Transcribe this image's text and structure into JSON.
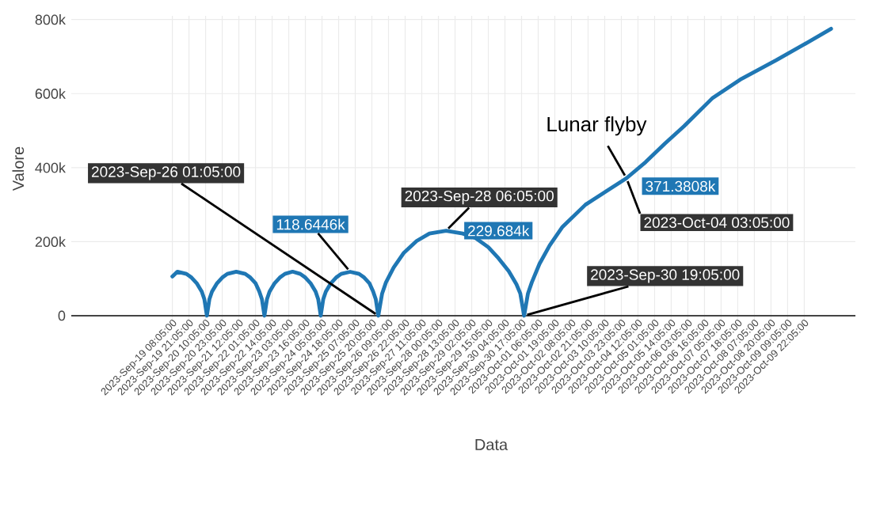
{
  "chart_data": {
    "type": "line",
    "xlabel": "Data",
    "ylabel": "Valore",
    "grid": true,
    "xlim": [
      "2023-09-16T01:05",
      "2023-10-11T14:05"
    ],
    "ylim": [
      -15000,
      810000
    ],
    "yticks": [
      0,
      {
        "value": 200000,
        "label": "200k"
      },
      {
        "value": 400000,
        "label": "400k"
      },
      {
        "value": 600000,
        "label": "600k"
      },
      {
        "value": 800000,
        "label": "800k"
      }
    ],
    "xticks": [
      {
        "value": "2023-09-19T08:05",
        "label": "2023-Sep-19 08:05:00"
      },
      {
        "value": "2023-09-19T21:05",
        "label": "2023-Sep-19 21:05:00"
      },
      {
        "value": "2023-09-20T10:05",
        "label": "2023-Sep-20 10:05:00"
      },
      {
        "value": "2023-09-20T23:05",
        "label": "2023-Sep-20 23:05:00"
      },
      {
        "value": "2023-09-21T12:05",
        "label": "2023-Sep-21 12:05:00"
      },
      {
        "value": "2023-09-22T01:05",
        "label": "2023-Sep-22 01:05:00"
      },
      {
        "value": "2023-09-22T14:05",
        "label": "2023-Sep-22 14:05:00"
      },
      {
        "value": "2023-09-23T03:05",
        "label": "2023-Sep-23 03:05:00"
      },
      {
        "value": "2023-09-23T16:05",
        "label": "2023-Sep-23 16:05:00"
      },
      {
        "value": "2023-09-24T05:05",
        "label": "2023-Sep-24 05:05:00"
      },
      {
        "value": "2023-09-24T18:05",
        "label": "2023-Sep-24 18:05:00"
      },
      {
        "value": "2023-09-25T07:05",
        "label": "2023-Sep-25 07:05:00"
      },
      {
        "value": "2023-09-25T20:05",
        "label": "2023-Sep-25 20:05:00"
      },
      {
        "value": "2023-09-26T09:05",
        "label": "2023-Sep-26 09:05:00"
      },
      {
        "value": "2023-09-26T22:05",
        "label": "2023-Sep-26 22:05:00"
      },
      {
        "value": "2023-09-27T11:05",
        "label": "2023-Sep-27 11:05:00"
      },
      {
        "value": "2023-09-28T00:05",
        "label": "2023-Sep-28 00:05:00"
      },
      {
        "value": "2023-09-28T13:05",
        "label": "2023-Sep-28 13:05:00"
      },
      {
        "value": "2023-09-29T02:05",
        "label": "2023-Sep-29 02:05:00"
      },
      {
        "value": "2023-09-29T15:05",
        "label": "2023-Sep-29 15:05:00"
      },
      {
        "value": "2023-09-30T04:05",
        "label": "2023-Sep-30 04:05:00"
      },
      {
        "value": "2023-09-30T17:05",
        "label": "2023-Sep-30 17:05:00"
      },
      {
        "value": "2023-10-01T06:05",
        "label": "2023-Oct-01 06:05:00"
      },
      {
        "value": "2023-10-01T19:05",
        "label": "2023-Oct-01 19:05:00"
      },
      {
        "value": "2023-10-02T08:05",
        "label": "2023-Oct-02 08:05:00"
      },
      {
        "value": "2023-10-02T21:05",
        "label": "2023-Oct-02 21:05:00"
      },
      {
        "value": "2023-10-03T10:05",
        "label": "2023-Oct-03 10:05:00"
      },
      {
        "value": "2023-10-03T23:05",
        "label": "2023-Oct-03 23:05:00"
      },
      {
        "value": "2023-10-04T12:05",
        "label": "2023-Oct-04 12:05:00"
      },
      {
        "value": "2023-10-05T01:05",
        "label": "2023-Oct-05 01:05:00"
      },
      {
        "value": "2023-10-05T14:05",
        "label": "2023-Oct-05 14:05:00"
      },
      {
        "value": "2023-10-06T03:05",
        "label": "2023-Oct-06 03:05:00"
      },
      {
        "value": "2023-10-06T16:05",
        "label": "2023-Oct-06 16:05:00"
      },
      {
        "value": "2023-10-07T05:05",
        "label": "2023-Oct-07 05:05:00"
      },
      {
        "value": "2023-10-07T18:05",
        "label": "2023-Oct-07 18:05:00"
      },
      {
        "value": "2023-10-08T07:05",
        "label": "2023-Oct-08 07:05:00"
      },
      {
        "value": "2023-10-08T20:05",
        "label": "2023-Oct-08 20:05:00"
      },
      {
        "value": "2023-10-09T09:05",
        "label": "2023-Oct-09 09:05:00"
      },
      {
        "value": "2023-10-09T22:05",
        "label": "2023-Oct-09 22:05:00"
      }
    ],
    "series": [
      {
        "color": "#1f77b4",
        "x": [
          "2023-09-19T08:05",
          "2023-09-19T12:05",
          "2023-09-19T19:05",
          "2023-09-19T23:05",
          "2023-09-20T03:05",
          "2023-09-20T07:05",
          "2023-09-20T09:05",
          "2023-09-20T11:05",
          "2023-09-20T13:05",
          "2023-09-20T15:05",
          "2023-09-20T19:05",
          "2023-09-20T23:05",
          "2023-09-21T03:05",
          "2023-09-21T10:05",
          "2023-09-21T17:05",
          "2023-09-21T21:05",
          "2023-09-22T01:05",
          "2023-09-22T04:05",
          "2023-09-22T06:05",
          "2023-09-22T08:05",
          "2023-09-22T10:05",
          "2023-09-22T12:05",
          "2023-09-22T16:05",
          "2023-09-22T20:05",
          "2023-09-23T00:05",
          "2023-09-23T06:05",
          "2023-09-23T12:05",
          "2023-09-23T16:05",
          "2023-09-23T20:05",
          "2023-09-24T00:05",
          "2023-09-24T02:05",
          "2023-09-24T04:05",
          "2023-09-24T06:05",
          "2023-09-24T08:05",
          "2023-09-24T12:05",
          "2023-09-24T16:05",
          "2023-09-24T20:05",
          "2023-09-25T03:05",
          "2023-09-25T10:05",
          "2023-09-25T14:05",
          "2023-09-25T18:05",
          "2023-09-25T21:05",
          "2023-09-25T23:05",
          "2023-09-26T01:05",
          "2023-09-26T04:05",
          "2023-09-26T07:05",
          "2023-09-26T13:05",
          "2023-09-26T21:05",
          "2023-09-27T07:05",
          "2023-09-27T17:05",
          "2023-09-28T06:05",
          "2023-09-28T19:05",
          "2023-09-29T05:05",
          "2023-09-29T15:05",
          "2023-09-29T23:05",
          "2023-09-30T07:05",
          "2023-09-30T13:05",
          "2023-09-30T16:05",
          "2023-09-30T19:05",
          "2023-09-30T22:05",
          "2023-10-01T01:05",
          "2023-10-01T07:05",
          "2023-10-01T15:05",
          "2023-10-02T01:05",
          "2023-10-02T19:05",
          "2023-10-04T03:05",
          "2023-10-04T18:05",
          "2023-10-05T09:05",
          "2023-10-06T00:05",
          "2023-10-06T22:05",
          "2023-10-07T21:05",
          "2023-10-09T00:05",
          "2023-10-09T23:05",
          "2023-10-10T19:05"
        ],
        "values": [
          106000,
          119000,
          113000,
          103000,
          88000,
          65000,
          45000,
          0,
          45000,
          65000,
          88000,
          103000,
          113000,
          119000,
          113000,
          103000,
          88000,
          65000,
          45000,
          0,
          45000,
          65000,
          88000,
          103000,
          113000,
          119000,
          113000,
          103000,
          88000,
          65000,
          45000,
          0,
          45000,
          65000,
          88000,
          103000,
          113000,
          118644.6,
          113000,
          103000,
          88000,
          65000,
          45000,
          0,
          60000,
          90000,
          130000,
          170000,
          202000,
          222000,
          229684,
          222000,
          210000,
          185000,
          155000,
          120000,
          85000,
          60000,
          0,
          60000,
          90000,
          140000,
          190000,
          240000,
          300000,
          371380.8,
          415000,
          465000,
          512000,
          587000,
          640000,
          690000,
          735000,
          775000
        ]
      }
    ],
    "annotations": [
      {
        "text": "118.6446k",
        "x": "2023-09-25T03:05",
        "y": 118644.6
      },
      {
        "text": "2023-Sep-26 01:05:00",
        "x": "2023-09-26T01:05",
        "y": 0
      },
      {
        "text": "2023-Sep-28 06:05:00",
        "x": "2023-09-28T06:05",
        "y": 229684
      },
      {
        "text": "229.684k",
        "x": "2023-09-28T06:05",
        "y": 229684
      },
      {
        "text": "2023-Sep-30 19:05:00",
        "x": "2023-09-30T19:05",
        "y": 0
      },
      {
        "text": "Lunar flyby",
        "x": "2023-10-04T03:05",
        "y": 371380.8
      },
      {
        "text": "371.3808k",
        "x": "2023-10-04T03:05",
        "y": 371380.8
      },
      {
        "text": "2023-Oct-04 03:05:00",
        "x": "2023-10-04T03:05",
        "y": 371380.8
      }
    ]
  }
}
